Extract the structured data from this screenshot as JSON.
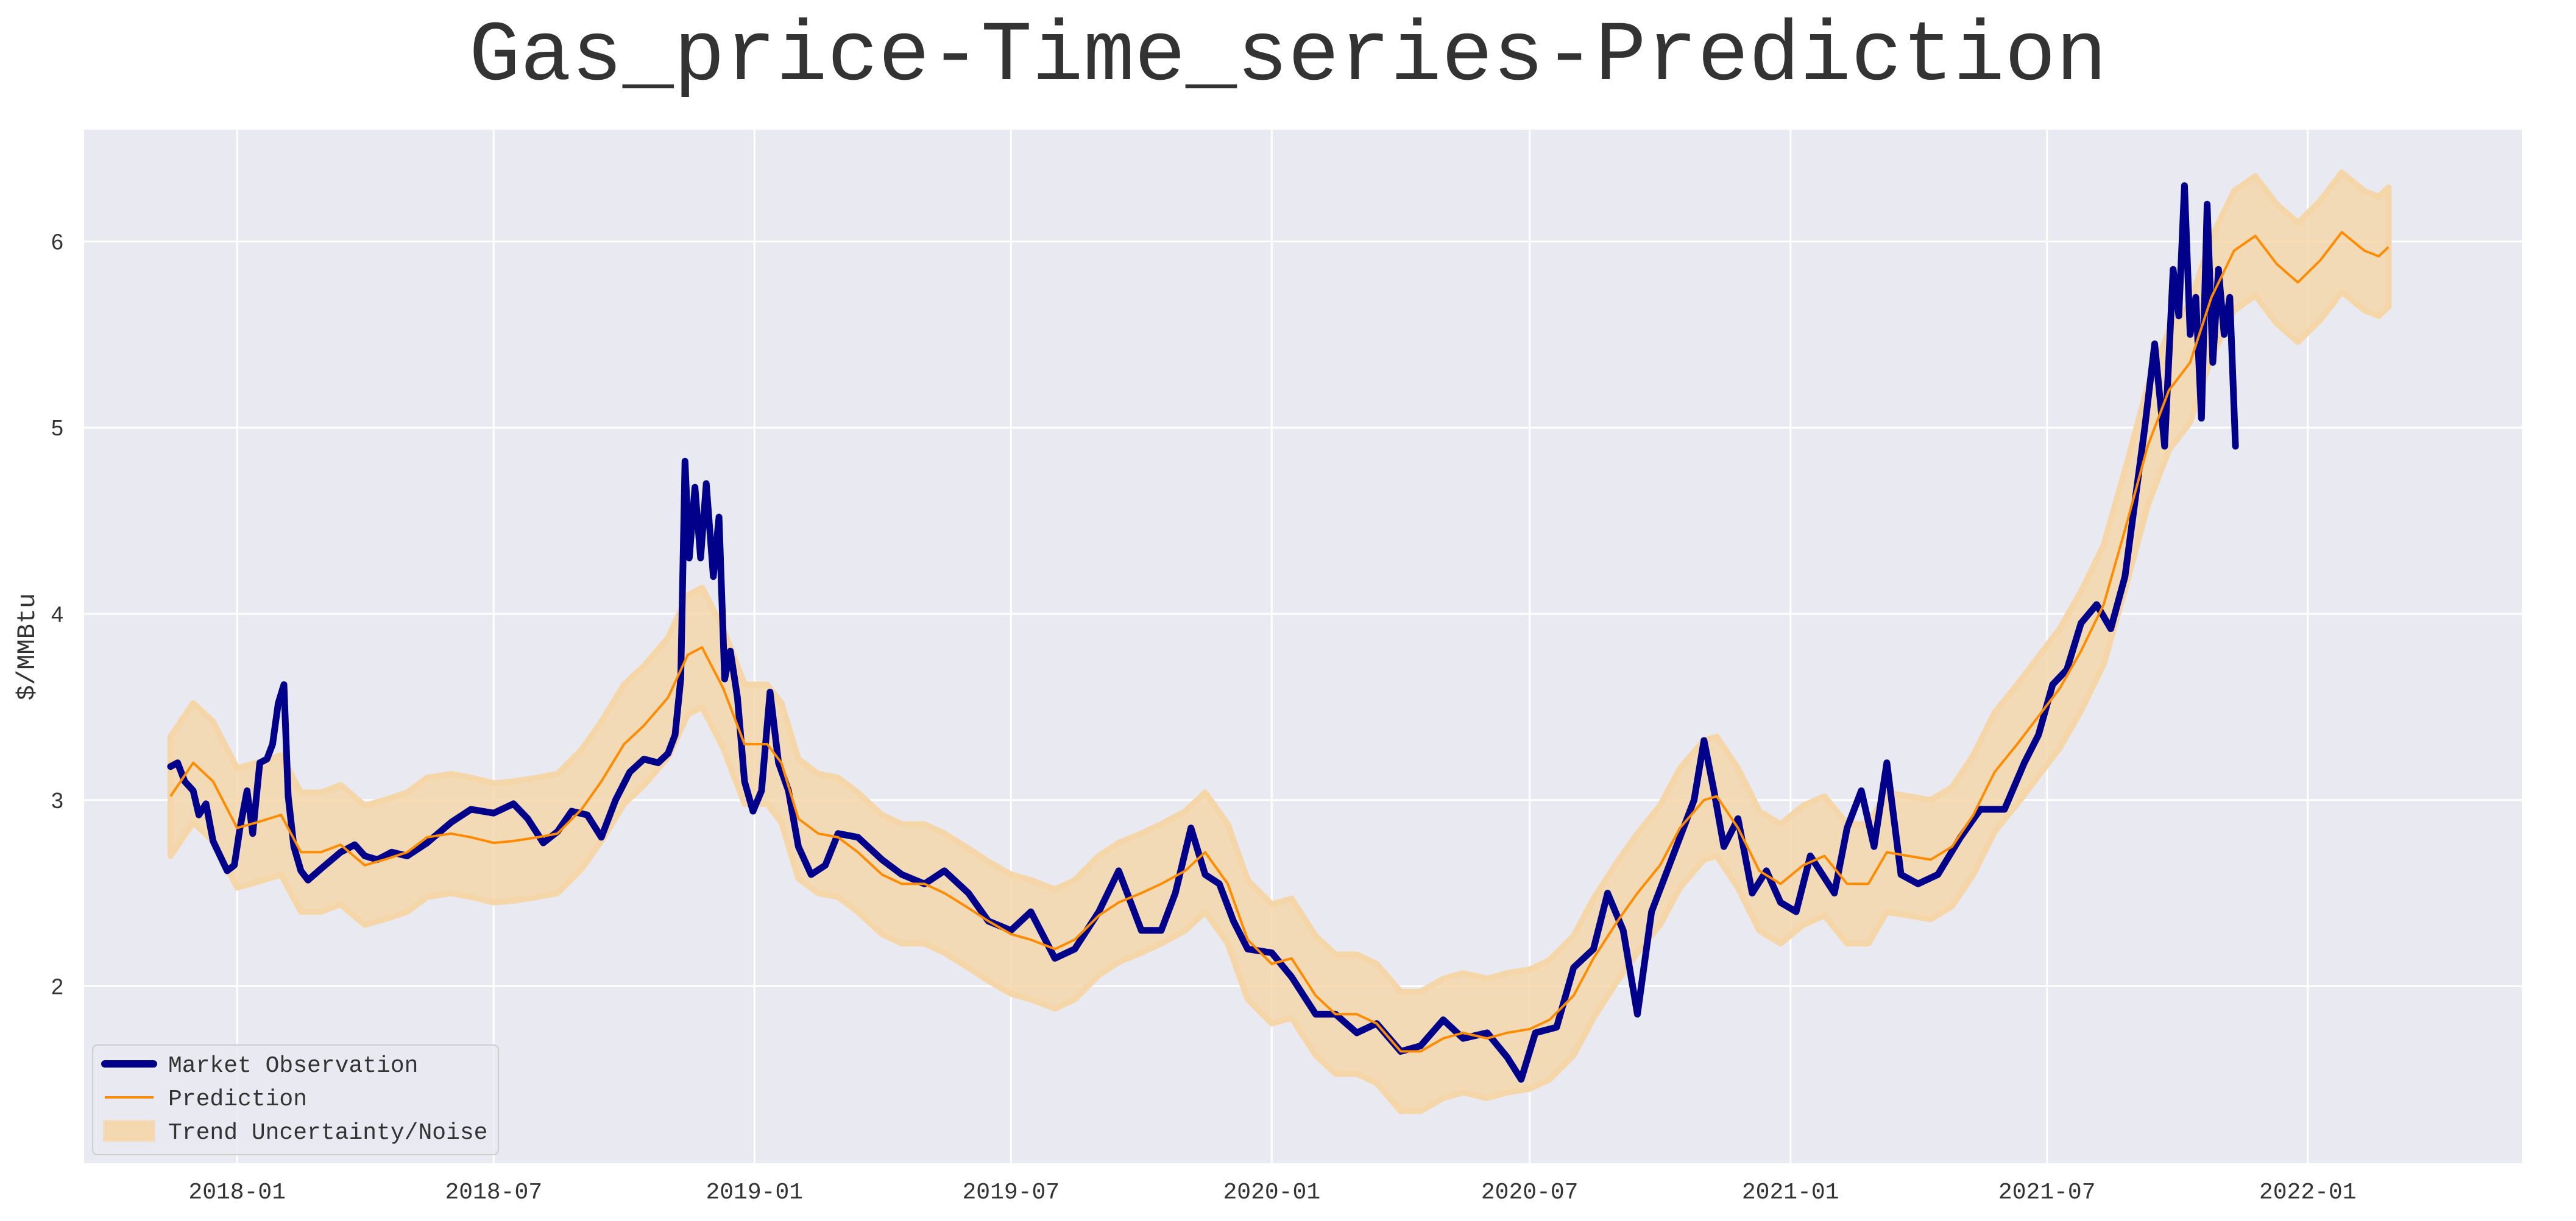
{
  "chart_data": {
    "type": "line",
    "title": "Gas_price-Time_series-Prediction",
    "xlabel": "",
    "ylabel": "$/MMBtu",
    "x_type": "date",
    "xlim": [
      "2017-09-15",
      "2022-06-01"
    ],
    "ylim": [
      1.05,
      6.6
    ],
    "x_ticks": [
      "2018-01",
      "2018-07",
      "2019-01",
      "2019-07",
      "2020-01",
      "2020-07",
      "2021-01",
      "2021-07",
      "2022-01"
    ],
    "y_ticks": [
      2,
      3,
      4,
      5,
      6
    ],
    "grid": true,
    "legend": {
      "placement": "lower-left",
      "entries": [
        "Market Observation",
        "Prediction",
        "Trend Uncertainty/Noise"
      ]
    },
    "colors": {
      "observation": "#00008b",
      "prediction": "#ff8c00",
      "band": "#f5d6a8",
      "plot_background": "#e9e9f2",
      "grid": "#ffffff"
    },
    "series": [
      {
        "name": "Market Observation",
        "points": [
          [
            "2017-11-15",
            3.18
          ],
          [
            "2017-11-20",
            3.2
          ],
          [
            "2017-11-25",
            3.1
          ],
          [
            "2017-12-01",
            3.05
          ],
          [
            "2017-12-05",
            2.92
          ],
          [
            "2017-12-10",
            2.98
          ],
          [
            "2017-12-15",
            2.78
          ],
          [
            "2017-12-20",
            2.7
          ],
          [
            "2017-12-25",
            2.62
          ],
          [
            "2017-12-30",
            2.65
          ],
          [
            "2018-01-03",
            2.85
          ],
          [
            "2018-01-08",
            3.05
          ],
          [
            "2018-01-12",
            2.82
          ],
          [
            "2018-01-17",
            3.2
          ],
          [
            "2018-01-22",
            3.22
          ],
          [
            "2018-01-26",
            3.3
          ],
          [
            "2018-01-30",
            3.52
          ],
          [
            "2018-02-03",
            3.62
          ],
          [
            "2018-02-06",
            3.02
          ],
          [
            "2018-02-10",
            2.75
          ],
          [
            "2018-02-15",
            2.62
          ],
          [
            "2018-02-20",
            2.57
          ],
          [
            "2018-03-01",
            2.63
          ],
          [
            "2018-03-15",
            2.72
          ],
          [
            "2018-03-25",
            2.76
          ],
          [
            "2018-04-01",
            2.7
          ],
          [
            "2018-04-10",
            2.68
          ],
          [
            "2018-04-20",
            2.72
          ],
          [
            "2018-05-01",
            2.7
          ],
          [
            "2018-05-15",
            2.77
          ],
          [
            "2018-06-01",
            2.88
          ],
          [
            "2018-06-15",
            2.95
          ],
          [
            "2018-07-01",
            2.93
          ],
          [
            "2018-07-15",
            2.98
          ],
          [
            "2018-07-25",
            2.9
          ],
          [
            "2018-08-05",
            2.77
          ],
          [
            "2018-08-15",
            2.83
          ],
          [
            "2018-08-25",
            2.94
          ],
          [
            "2018-09-05",
            2.92
          ],
          [
            "2018-09-15",
            2.8
          ],
          [
            "2018-09-25",
            3.0
          ],
          [
            "2018-10-05",
            3.15
          ],
          [
            "2018-10-15",
            3.22
          ],
          [
            "2018-10-25",
            3.2
          ],
          [
            "2018-11-01",
            3.25
          ],
          [
            "2018-11-06",
            3.35
          ],
          [
            "2018-11-10",
            3.65
          ],
          [
            "2018-11-13",
            4.82
          ],
          [
            "2018-11-16",
            4.3
          ],
          [
            "2018-11-20",
            4.68
          ],
          [
            "2018-11-24",
            4.3
          ],
          [
            "2018-11-28",
            4.7
          ],
          [
            "2018-12-03",
            4.2
          ],
          [
            "2018-12-07",
            4.52
          ],
          [
            "2018-12-11",
            3.65
          ],
          [
            "2018-12-15",
            3.8
          ],
          [
            "2018-12-20",
            3.55
          ],
          [
            "2018-12-25",
            3.1
          ],
          [
            "2018-12-31",
            2.94
          ],
          [
            "2019-01-06",
            3.05
          ],
          [
            "2019-01-12",
            3.58
          ],
          [
            "2019-01-18",
            3.2
          ],
          [
            "2019-01-25",
            3.05
          ],
          [
            "2019-02-01",
            2.75
          ],
          [
            "2019-02-10",
            2.6
          ],
          [
            "2019-02-20",
            2.65
          ],
          [
            "2019-03-01",
            2.82
          ],
          [
            "2019-03-15",
            2.8
          ],
          [
            "2019-04-01",
            2.68
          ],
          [
            "2019-04-15",
            2.6
          ],
          [
            "2019-05-01",
            2.55
          ],
          [
            "2019-05-15",
            2.62
          ],
          [
            "2019-06-01",
            2.5
          ],
          [
            "2019-06-15",
            2.35
          ],
          [
            "2019-07-01",
            2.3
          ],
          [
            "2019-07-15",
            2.4
          ],
          [
            "2019-08-01",
            2.15
          ],
          [
            "2019-08-15",
            2.2
          ],
          [
            "2019-09-01",
            2.4
          ],
          [
            "2019-09-15",
            2.62
          ],
          [
            "2019-10-01",
            2.3
          ],
          [
            "2019-10-15",
            2.3
          ],
          [
            "2019-10-25",
            2.5
          ],
          [
            "2019-11-05",
            2.85
          ],
          [
            "2019-11-15",
            2.6
          ],
          [
            "2019-11-25",
            2.55
          ],
          [
            "2019-12-05",
            2.35
          ],
          [
            "2019-12-15",
            2.2
          ],
          [
            "2020-01-01",
            2.18
          ],
          [
            "2020-01-15",
            2.05
          ],
          [
            "2020-02-01",
            1.85
          ],
          [
            "2020-02-15",
            1.85
          ],
          [
            "2020-03-01",
            1.75
          ],
          [
            "2020-03-15",
            1.8
          ],
          [
            "2020-04-01",
            1.65
          ],
          [
            "2020-04-15",
            1.68
          ],
          [
            "2020-05-01",
            1.82
          ],
          [
            "2020-05-15",
            1.72
          ],
          [
            "2020-06-01",
            1.75
          ],
          [
            "2020-06-15",
            1.62
          ],
          [
            "2020-06-25",
            1.5
          ],
          [
            "2020-07-05",
            1.75
          ],
          [
            "2020-07-20",
            1.78
          ],
          [
            "2020-08-01",
            2.1
          ],
          [
            "2020-08-15",
            2.2
          ],
          [
            "2020-08-25",
            2.5
          ],
          [
            "2020-09-05",
            2.3
          ],
          [
            "2020-09-15",
            1.85
          ],
          [
            "2020-09-25",
            2.4
          ],
          [
            "2020-10-05",
            2.6
          ],
          [
            "2020-10-15",
            2.8
          ],
          [
            "2020-10-25",
            3.0
          ],
          [
            "2020-11-01",
            3.32
          ],
          [
            "2020-11-08",
            3.05
          ],
          [
            "2020-11-15",
            2.75
          ],
          [
            "2020-11-25",
            2.9
          ],
          [
            "2020-12-05",
            2.5
          ],
          [
            "2020-12-15",
            2.62
          ],
          [
            "2020-12-25",
            2.45
          ],
          [
            "2021-01-05",
            2.4
          ],
          [
            "2021-01-15",
            2.7
          ],
          [
            "2021-02-01",
            2.5
          ],
          [
            "2021-02-10",
            2.85
          ],
          [
            "2021-02-20",
            3.05
          ],
          [
            "2021-03-01",
            2.75
          ],
          [
            "2021-03-10",
            3.2
          ],
          [
            "2021-03-20",
            2.6
          ],
          [
            "2021-04-01",
            2.55
          ],
          [
            "2021-04-15",
            2.6
          ],
          [
            "2021-05-01",
            2.8
          ],
          [
            "2021-05-15",
            2.95
          ],
          [
            "2021-06-01",
            2.95
          ],
          [
            "2021-06-15",
            3.2
          ],
          [
            "2021-06-25",
            3.35
          ],
          [
            "2021-07-05",
            3.62
          ],
          [
            "2021-07-15",
            3.7
          ],
          [
            "2021-07-25",
            3.95
          ],
          [
            "2021-08-05",
            4.05
          ],
          [
            "2021-08-15",
            3.92
          ],
          [
            "2021-08-25",
            4.2
          ],
          [
            "2021-09-01",
            4.6
          ],
          [
            "2021-09-08",
            5.0
          ],
          [
            "2021-09-15",
            5.45
          ],
          [
            "2021-09-22",
            4.9
          ],
          [
            "2021-09-28",
            5.85
          ],
          [
            "2021-10-02",
            5.6
          ],
          [
            "2021-10-06",
            6.3
          ],
          [
            "2021-10-10",
            5.5
          ],
          [
            "2021-10-14",
            5.7
          ],
          [
            "2021-10-18",
            5.05
          ],
          [
            "2021-10-22",
            6.2
          ],
          [
            "2021-10-26",
            5.35
          ],
          [
            "2021-10-30",
            5.85
          ],
          [
            "2021-11-03",
            5.5
          ],
          [
            "2021-11-07",
            5.7
          ],
          [
            "2021-11-11",
            4.9
          ]
        ]
      },
      {
        "name": "Prediction",
        "points": [
          [
            "2017-11-15",
            3.02
          ],
          [
            "2017-12-01",
            3.2
          ],
          [
            "2017-12-15",
            3.1
          ],
          [
            "2018-01-01",
            2.85
          ],
          [
            "2018-01-15",
            2.88
          ],
          [
            "2018-02-01",
            2.92
          ],
          [
            "2018-02-15",
            2.72
          ],
          [
            "2018-03-01",
            2.72
          ],
          [
            "2018-03-15",
            2.76
          ],
          [
            "2018-04-01",
            2.65
          ],
          [
            "2018-04-15",
            2.68
          ],
          [
            "2018-05-01",
            2.72
          ],
          [
            "2018-05-15",
            2.8
          ],
          [
            "2018-06-01",
            2.82
          ],
          [
            "2018-06-15",
            2.8
          ],
          [
            "2018-07-01",
            2.77
          ],
          [
            "2018-07-15",
            2.78
          ],
          [
            "2018-08-01",
            2.8
          ],
          [
            "2018-08-15",
            2.82
          ],
          [
            "2018-09-01",
            2.95
          ],
          [
            "2018-09-15",
            3.1
          ],
          [
            "2018-10-01",
            3.3
          ],
          [
            "2018-10-15",
            3.4
          ],
          [
            "2018-11-01",
            3.55
          ],
          [
            "2018-11-15",
            3.78
          ],
          [
            "2018-11-25",
            3.82
          ],
          [
            "2018-12-10",
            3.6
          ],
          [
            "2018-12-25",
            3.3
          ],
          [
            "2019-01-10",
            3.3
          ],
          [
            "2019-01-20",
            3.2
          ],
          [
            "2019-02-01",
            2.9
          ],
          [
            "2019-02-15",
            2.82
          ],
          [
            "2019-03-01",
            2.8
          ],
          [
            "2019-03-15",
            2.72
          ],
          [
            "2019-04-01",
            2.6
          ],
          [
            "2019-04-15",
            2.55
          ],
          [
            "2019-05-01",
            2.55
          ],
          [
            "2019-05-15",
            2.5
          ],
          [
            "2019-06-01",
            2.42
          ],
          [
            "2019-06-15",
            2.35
          ],
          [
            "2019-07-01",
            2.28
          ],
          [
            "2019-07-15",
            2.25
          ],
          [
            "2019-08-01",
            2.2
          ],
          [
            "2019-08-15",
            2.25
          ],
          [
            "2019-09-01",
            2.38
          ],
          [
            "2019-09-15",
            2.45
          ],
          [
            "2019-10-01",
            2.5
          ],
          [
            "2019-10-15",
            2.55
          ],
          [
            "2019-11-01",
            2.62
          ],
          [
            "2019-11-15",
            2.72
          ],
          [
            "2019-12-01",
            2.55
          ],
          [
            "2019-12-15",
            2.25
          ],
          [
            "2020-01-01",
            2.12
          ],
          [
            "2020-01-15",
            2.15
          ],
          [
            "2020-02-01",
            1.95
          ],
          [
            "2020-02-15",
            1.85
          ],
          [
            "2020-03-01",
            1.85
          ],
          [
            "2020-03-15",
            1.8
          ],
          [
            "2020-04-01",
            1.65
          ],
          [
            "2020-04-15",
            1.65
          ],
          [
            "2020-05-01",
            1.72
          ],
          [
            "2020-05-15",
            1.75
          ],
          [
            "2020-06-01",
            1.72
          ],
          [
            "2020-06-15",
            1.75
          ],
          [
            "2020-07-01",
            1.77
          ],
          [
            "2020-07-15",
            1.82
          ],
          [
            "2020-08-01",
            1.95
          ],
          [
            "2020-08-15",
            2.15
          ],
          [
            "2020-09-01",
            2.35
          ],
          [
            "2020-09-15",
            2.5
          ],
          [
            "2020-10-01",
            2.65
          ],
          [
            "2020-10-15",
            2.85
          ],
          [
            "2020-11-01",
            3.0
          ],
          [
            "2020-11-10",
            3.02
          ],
          [
            "2020-11-25",
            2.85
          ],
          [
            "2020-12-10",
            2.62
          ],
          [
            "2020-12-25",
            2.55
          ],
          [
            "2021-01-10",
            2.65
          ],
          [
            "2021-01-25",
            2.7
          ],
          [
            "2021-02-10",
            2.55
          ],
          [
            "2021-02-25",
            2.55
          ],
          [
            "2021-03-10",
            2.72
          ],
          [
            "2021-03-25",
            2.7
          ],
          [
            "2021-04-10",
            2.68
          ],
          [
            "2021-04-25",
            2.75
          ],
          [
            "2021-05-10",
            2.92
          ],
          [
            "2021-05-25",
            3.15
          ],
          [
            "2021-06-10",
            3.3
          ],
          [
            "2021-06-25",
            3.45
          ],
          [
            "2021-07-10",
            3.6
          ],
          [
            "2021-07-25",
            3.8
          ],
          [
            "2021-08-10",
            4.05
          ],
          [
            "2021-08-25",
            4.45
          ],
          [
            "2021-09-10",
            4.9
          ],
          [
            "2021-09-25",
            5.2
          ],
          [
            "2021-10-10",
            5.35
          ],
          [
            "2021-10-25",
            5.7
          ],
          [
            "2021-11-10",
            5.95
          ],
          [
            "2021-11-25",
            6.03
          ],
          [
            "2021-12-10",
            5.88
          ],
          [
            "2021-12-25",
            5.78
          ],
          [
            "2022-01-10",
            5.9
          ],
          [
            "2022-01-25",
            6.05
          ],
          [
            "2022-02-10",
            5.95
          ],
          [
            "2022-02-20",
            5.92
          ],
          [
            "2022-02-27",
            5.97
          ]
        ]
      },
      {
        "name": "Trend Uncertainty/Noise",
        "band_halfwidth": 0.32
      }
    ]
  }
}
